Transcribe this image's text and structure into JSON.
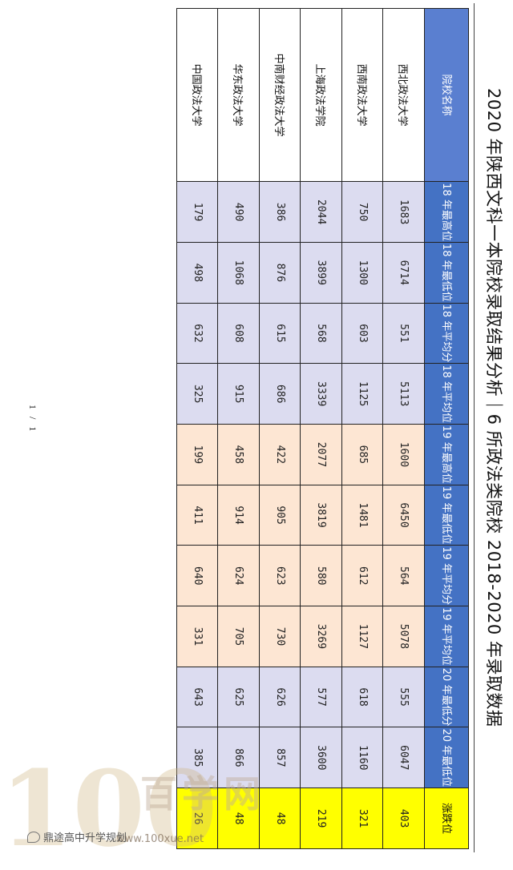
{
  "title": "2020 年陕西文科一本院校录取结果分析｜6 所政法类院校 2018-2020 年录取数据",
  "table": {
    "headers": [
      "院校名称",
      "18 年最高位",
      "18 年最低位",
      "18 年平均分",
      "18 年平均位",
      "19 年最高位",
      "19 年最低位",
      "19 年平均分",
      "19 年平均位",
      "20 年最低分",
      "20 年最低位",
      "涨跌位"
    ],
    "rows": [
      {
        "name": "西北政法大学",
        "values": [
          "1683",
          "6714",
          "551",
          "5113",
          "1600",
          "6450",
          "564",
          "5078",
          "555",
          "6047",
          "403"
        ]
      },
      {
        "name": "西南政法大学",
        "values": [
          "750",
          "1300",
          "603",
          "1125",
          "685",
          "1481",
          "612",
          "1127",
          "618",
          "1160",
          "321"
        ]
      },
      {
        "name": "上海政法学院",
        "values": [
          "2044",
          "3899",
          "568",
          "3339",
          "2077",
          "3819",
          "580",
          "3269",
          "577",
          "3600",
          "219"
        ]
      },
      {
        "name": "中南财经政法大学",
        "values": [
          "386",
          "876",
          "615",
          "686",
          "422",
          "905",
          "623",
          "730",
          "626",
          "857",
          "48"
        ]
      },
      {
        "name": "华东政法大学",
        "values": [
          "490",
          "1068",
          "608",
          "915",
          "458",
          "914",
          "624",
          "705",
          "625",
          "866",
          "48"
        ]
      },
      {
        "name": "中国政法大学",
        "values": [
          "179",
          "498",
          "632",
          "325",
          "199",
          "411",
          "640",
          "331",
          "643",
          "385",
          "26"
        ]
      }
    ]
  },
  "page_number": "1 / 1",
  "watermark": {
    "number": "100",
    "chars": "百学网",
    "url": "www.100xue.net",
    "wechat": "鼎途高中升学规划"
  },
  "colors": {
    "header_blue": "#4472c4",
    "band_2018_2020": "#dcdcf0",
    "band_2019": "#fde6d3",
    "highlight_yellow": "#ffff00"
  }
}
